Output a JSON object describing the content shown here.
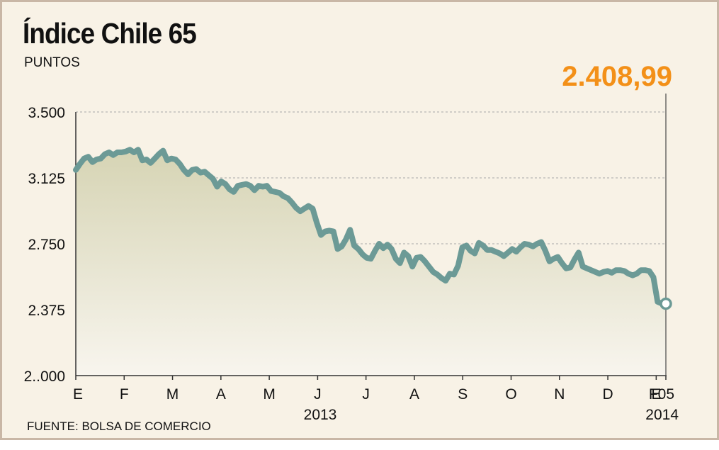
{
  "header": {
    "title": "Índice Chile 65",
    "subtitle": "PUNTOS",
    "last_value_label": "2.408,99"
  },
  "footer": {
    "source": "FUENTE: BOLSA DE COMERCIO"
  },
  "colors": {
    "background": "#f8f2e6",
    "line": "#6c9a96",
    "area_top": "#d6d4b4",
    "area_bottom": "#f8f5ee",
    "accent_value": "#f39018",
    "grid": "#a8a8a8"
  },
  "chart_data": {
    "type": "area",
    "title": "Índice Chile 65",
    "subtitle": "PUNTOS",
    "xlabel": "",
    "ylabel": "",
    "ylim": [
      2000,
      3500
    ],
    "y_ticks": [
      3500,
      3125,
      2750,
      2375,
      2000
    ],
    "y_tick_labels": [
      "3.500",
      "3.125",
      "2.750",
      "2.375",
      "2..000"
    ],
    "x_month_labels": [
      "E",
      "F",
      "M",
      "A",
      "M",
      "J",
      "J",
      "A",
      "S",
      "O",
      "N",
      "D",
      "E",
      "F05"
    ],
    "x_year_labels": [
      "2013",
      "2014"
    ],
    "grid": true,
    "last_point": {
      "date": "2014-02-05",
      "value": 2408.99,
      "label": "2.408,99"
    },
    "series": [
      {
        "x_start": "2013-01-02",
        "x_end": "2014-02-05",
        "values": [
          3170,
          3205,
          3235,
          3245,
          3215,
          3230,
          3235,
          3260,
          3270,
          3255,
          3270,
          3270,
          3275,
          3285,
          3270,
          3285,
          3225,
          3230,
          3210,
          3235,
          3260,
          3280,
          3225,
          3235,
          3230,
          3205,
          3170,
          3145,
          3170,
          3175,
          3155,
          3160,
          3140,
          3120,
          3075,
          3105,
          3090,
          3060,
          3045,
          3080,
          3085,
          3090,
          3080,
          3055,
          3080,
          3075,
          3080,
          3050,
          3045,
          3040,
          3020,
          3010,
          2985,
          2955,
          2935,
          2950,
          2965,
          2950,
          2870,
          2800,
          2820,
          2825,
          2820,
          2720,
          2735,
          2775,
          2830,
          2740,
          2720,
          2690,
          2670,
          2665,
          2710,
          2750,
          2725,
          2745,
          2720,
          2665,
          2640,
          2700,
          2680,
          2620,
          2670,
          2675,
          2650,
          2620,
          2590,
          2575,
          2555,
          2540,
          2580,
          2575,
          2625,
          2730,
          2740,
          2710,
          2695,
          2755,
          2740,
          2715,
          2715,
          2705,
          2695,
          2680,
          2700,
          2720,
          2705,
          2730,
          2750,
          2745,
          2735,
          2750,
          2760,
          2710,
          2650,
          2665,
          2675,
          2640,
          2610,
          2615,
          2660,
          2700,
          2620,
          2610,
          2600,
          2590,
          2580,
          2590,
          2595,
          2585,
          2600,
          2600,
          2595,
          2580,
          2570,
          2580,
          2600,
          2600,
          2595,
          2560,
          2420,
          2410,
          2408.99
        ]
      }
    ]
  }
}
